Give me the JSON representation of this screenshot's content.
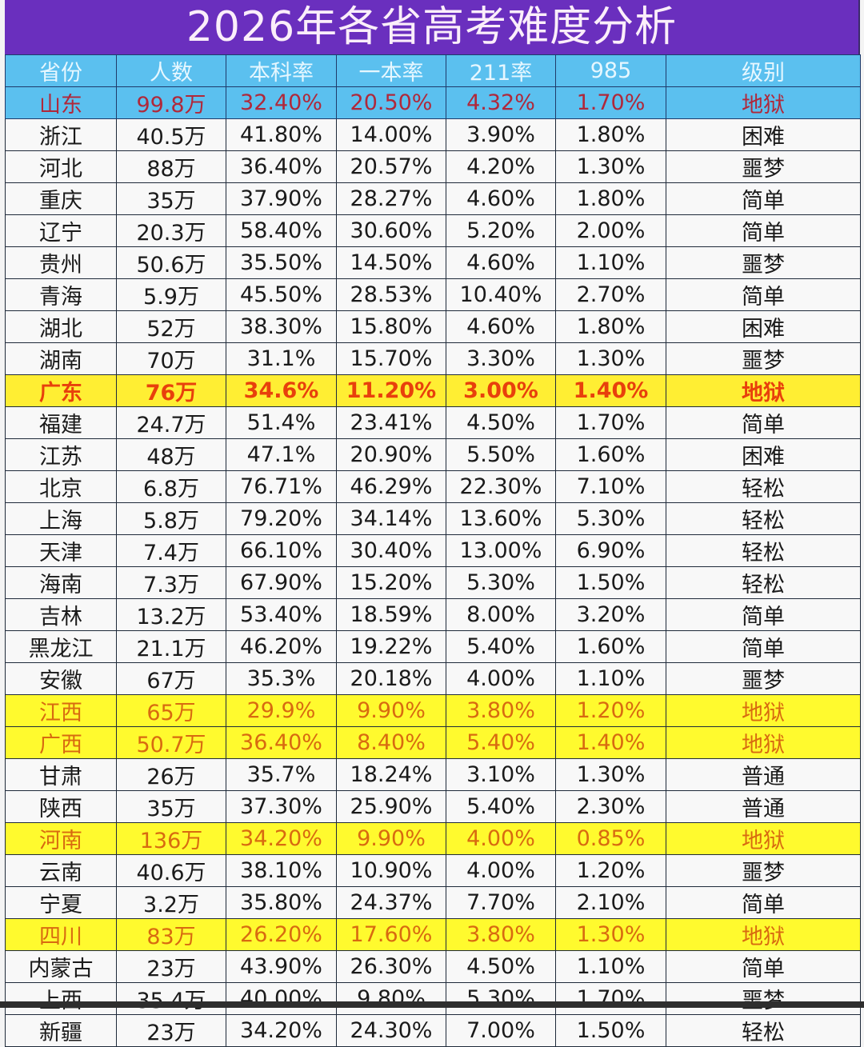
{
  "title": "2026年各省高考难度分析",
  "colors": {
    "title_bg": "#6a2fbe",
    "header_bg": "#5bc0ef",
    "highlight_bold_bg": "#ffee33",
    "highlight_bg": "#fffa2e",
    "hell_text": "#e8400c"
  },
  "table": {
    "headers": [
      "省份",
      "人数",
      "本科率",
      "一本率",
      "211率",
      "985",
      "级别"
    ],
    "rows": [
      {
        "style": "blue",
        "cells": [
          "山东",
          "99.8万",
          "32.40%",
          "20.50%",
          "4.32%",
          "1.70%",
          "地狱"
        ]
      },
      {
        "style": "normal",
        "cells": [
          "浙江",
          "40.5万",
          "41.80%",
          "14.00%",
          "3.90%",
          "1.80%",
          "困难"
        ]
      },
      {
        "style": "normal",
        "cells": [
          "河北",
          "88万",
          "36.40%",
          "20.57%",
          "4.20%",
          "1.30%",
          "噩梦"
        ]
      },
      {
        "style": "normal",
        "cells": [
          "重庆",
          "35万",
          "37.90%",
          "28.27%",
          "4.60%",
          "1.80%",
          "简单"
        ]
      },
      {
        "style": "normal",
        "cells": [
          "辽宁",
          "20.3万",
          "58.40%",
          "30.60%",
          "5.20%",
          "2.00%",
          "简单"
        ]
      },
      {
        "style": "normal",
        "cells": [
          "贵州",
          "50.6万",
          "35.50%",
          "14.50%",
          "4.60%",
          "1.10%",
          "噩梦"
        ]
      },
      {
        "style": "normal",
        "cells": [
          "青海",
          "5.9万",
          "45.50%",
          "28.53%",
          "10.40%",
          "2.70%",
          "简单"
        ]
      },
      {
        "style": "normal",
        "cells": [
          "湖北",
          "52万",
          "38.30%",
          "15.80%",
          "4.60%",
          "1.80%",
          "困难"
        ]
      },
      {
        "style": "normal",
        "cells": [
          "湖南",
          "70万",
          "31.1%",
          "15.70%",
          "3.30%",
          "1.30%",
          "噩梦"
        ]
      },
      {
        "style": "hl-bold",
        "cells": [
          "广东",
          "76万",
          "34.6%",
          "11.20%",
          "3.00%",
          "1.40%",
          "地狱"
        ]
      },
      {
        "style": "normal",
        "cells": [
          "福建",
          "24.7万",
          "51.4%",
          "23.41%",
          "4.50%",
          "1.70%",
          "简单"
        ]
      },
      {
        "style": "normal",
        "cells": [
          "江苏",
          "48万",
          "47.1%",
          "20.90%",
          "5.50%",
          "1.60%",
          "困难"
        ]
      },
      {
        "style": "normal",
        "cells": [
          "北京",
          "6.8万",
          "76.71%",
          "46.29%",
          "22.30%",
          "7.10%",
          "轻松"
        ]
      },
      {
        "style": "normal",
        "cells": [
          "上海",
          "5.8万",
          "79.20%",
          "34.14%",
          "13.60%",
          "5.30%",
          "轻松"
        ]
      },
      {
        "style": "normal",
        "cells": [
          "天津",
          "7.4万",
          "66.10%",
          "30.40%",
          "13.00%",
          "6.90%",
          "轻松"
        ]
      },
      {
        "style": "normal",
        "cells": [
          "海南",
          "7.3万",
          "67.90%",
          "15.20%",
          "5.30%",
          "1.50%",
          "轻松"
        ]
      },
      {
        "style": "normal",
        "cells": [
          "吉林",
          "13.2万",
          "53.40%",
          "18.59%",
          "8.00%",
          "3.20%",
          "简单"
        ]
      },
      {
        "style": "normal",
        "cells": [
          "黑龙江",
          "21.1万",
          "46.20%",
          "19.22%",
          "5.40%",
          "1.60%",
          "简单"
        ]
      },
      {
        "style": "normal",
        "cells": [
          "安徽",
          "67万",
          "35.3%",
          "20.18%",
          "4.00%",
          "1.10%",
          "噩梦"
        ]
      },
      {
        "style": "hl",
        "cells": [
          "江西",
          "65万",
          "29.9%",
          "9.90%",
          "3.80%",
          "1.20%",
          "地狱"
        ]
      },
      {
        "style": "hl",
        "cells": [
          "广西",
          "50.7万",
          "36.40%",
          "8.40%",
          "5.40%",
          "1.40%",
          "地狱"
        ]
      },
      {
        "style": "normal",
        "cells": [
          "甘肃",
          "26万",
          "35.7%",
          "18.24%",
          "3.10%",
          "1.30%",
          "普通"
        ]
      },
      {
        "style": "normal",
        "cells": [
          "陕西",
          "35万",
          "37.30%",
          "25.90%",
          "5.40%",
          "2.30%",
          "普通"
        ]
      },
      {
        "style": "hl",
        "cells": [
          "河南",
          "136万",
          "34.20%",
          "9.90%",
          "4.00%",
          "0.85%",
          "地狱"
        ]
      },
      {
        "style": "normal",
        "cells": [
          "云南",
          "40.6万",
          "38.10%",
          "10.90%",
          "4.00%",
          "1.20%",
          "噩梦"
        ]
      },
      {
        "style": "normal",
        "cells": [
          "宁夏",
          "3.2万",
          "35.80%",
          "24.37%",
          "7.70%",
          "2.10%",
          "简单"
        ]
      },
      {
        "style": "hl",
        "cells": [
          "四川",
          "83万",
          "26.20%",
          "17.60%",
          "3.80%",
          "1.30%",
          "地狱"
        ]
      },
      {
        "style": "normal",
        "cells": [
          "内蒙古",
          "23万",
          "43.90%",
          "26.30%",
          "4.50%",
          "1.10%",
          "简单"
        ]
      },
      {
        "style": "normal",
        "cells": [
          "上西",
          "35.4万",
          "40.00%",
          "9.80%",
          "5.30%",
          "1.70%",
          "噩梦"
        ]
      },
      {
        "style": "normal",
        "cells": [
          "新疆",
          "23万",
          "34.20%",
          "24.30%",
          "7.00%",
          "1.50%",
          "轻松"
        ]
      }
    ]
  },
  "chart_data": {
    "type": "table",
    "title": "2026年各省高考难度分析",
    "columns": [
      "省份",
      "人数",
      "本科率",
      "一本率",
      "211率",
      "985",
      "级别"
    ],
    "rows": [
      [
        "山东",
        "99.8万",
        "32.40%",
        "20.50%",
        "4.32%",
        "1.70%",
        "地狱"
      ],
      [
        "浙江",
        "40.5万",
        "41.80%",
        "14.00%",
        "3.90%",
        "1.80%",
        "困难"
      ],
      [
        "河北",
        "88万",
        "36.40%",
        "20.57%",
        "4.20%",
        "1.30%",
        "噩梦"
      ],
      [
        "重庆",
        "35万",
        "37.90%",
        "28.27%",
        "4.60%",
        "1.80%",
        "简单"
      ],
      [
        "辽宁",
        "20.3万",
        "58.40%",
        "30.60%",
        "5.20%",
        "2.00%",
        "简单"
      ],
      [
        "贵州",
        "50.6万",
        "35.50%",
        "14.50%",
        "4.60%",
        "1.10%",
        "噩梦"
      ],
      [
        "青海",
        "5.9万",
        "45.50%",
        "28.53%",
        "10.40%",
        "2.70%",
        "简单"
      ],
      [
        "湖北",
        "52万",
        "38.30%",
        "15.80%",
        "4.60%",
        "1.80%",
        "困难"
      ],
      [
        "湖南",
        "70万",
        "31.1%",
        "15.70%",
        "3.30%",
        "1.30%",
        "噩梦"
      ],
      [
        "广东",
        "76万",
        "34.6%",
        "11.20%",
        "3.00%",
        "1.40%",
        "地狱"
      ],
      [
        "福建",
        "24.7万",
        "51.4%",
        "23.41%",
        "4.50%",
        "1.70%",
        "简单"
      ],
      [
        "江苏",
        "48万",
        "47.1%",
        "20.90%",
        "5.50%",
        "1.60%",
        "困难"
      ],
      [
        "北京",
        "6.8万",
        "76.71%",
        "46.29%",
        "22.30%",
        "7.10%",
        "轻松"
      ],
      [
        "上海",
        "5.8万",
        "79.20%",
        "34.14%",
        "13.60%",
        "5.30%",
        "轻松"
      ],
      [
        "天津",
        "7.4万",
        "66.10%",
        "30.40%",
        "13.00%",
        "6.90%",
        "轻松"
      ],
      [
        "海南",
        "7.3万",
        "67.90%",
        "15.20%",
        "5.30%",
        "1.50%",
        "轻松"
      ],
      [
        "吉林",
        "13.2万",
        "53.40%",
        "18.59%",
        "8.00%",
        "3.20%",
        "简单"
      ],
      [
        "黑龙江",
        "21.1万",
        "46.20%",
        "19.22%",
        "5.40%",
        "1.60%",
        "简单"
      ],
      [
        "安徽",
        "67万",
        "35.3%",
        "20.18%",
        "4.00%",
        "1.10%",
        "噩梦"
      ],
      [
        "江西",
        "65万",
        "29.9%",
        "9.90%",
        "3.80%",
        "1.20%",
        "地狱"
      ],
      [
        "广西",
        "50.7万",
        "36.40%",
        "8.40%",
        "5.40%",
        "1.40%",
        "地狱"
      ],
      [
        "甘肃",
        "26万",
        "35.7%",
        "18.24%",
        "3.10%",
        "1.30%",
        "普通"
      ],
      [
        "陕西",
        "35万",
        "37.30%",
        "25.90%",
        "5.40%",
        "2.30%",
        "普通"
      ],
      [
        "河南",
        "136万",
        "34.20%",
        "9.90%",
        "4.00%",
        "0.85%",
        "地狱"
      ],
      [
        "云南",
        "40.6万",
        "38.10%",
        "10.90%",
        "4.00%",
        "1.20%",
        "噩梦"
      ],
      [
        "宁夏",
        "3.2万",
        "35.80%",
        "24.37%",
        "7.70%",
        "2.10%",
        "简单"
      ],
      [
        "四川",
        "83万",
        "26.20%",
        "17.60%",
        "3.80%",
        "1.30%",
        "地狱"
      ],
      [
        "内蒙古",
        "23万",
        "43.90%",
        "26.30%",
        "4.50%",
        "1.10%",
        "简单"
      ],
      [
        "上西",
        "35.4万",
        "40.00%",
        "9.80%",
        "5.30%",
        "1.70%",
        "噩梦"
      ],
      [
        "新疆",
        "23万",
        "34.20%",
        "24.30%",
        "7.00%",
        "1.50%",
        "轻松"
      ]
    ]
  }
}
